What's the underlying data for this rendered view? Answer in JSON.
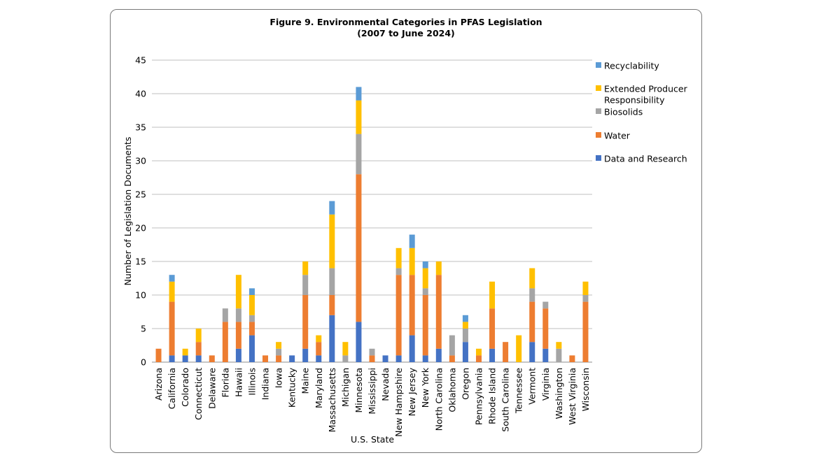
{
  "chart_data": {
    "type": "bar",
    "stacked": true,
    "title": "Figure 9. Environmental Categories in PFAS Legislation",
    "subtitle": "(2007 to June 2024)",
    "xlabel": "U.S. State",
    "ylabel": "Number of Legislation Documents",
    "ylim": [
      0,
      45
    ],
    "yticks": [
      0,
      5,
      10,
      15,
      20,
      25,
      30,
      35,
      40,
      45
    ],
    "grid": true,
    "legend_position": "right",
    "categories": [
      "Arizona",
      "California",
      "Colorado",
      "Connecticut",
      "Delaware",
      "Florida",
      "Hawaii",
      "Illinois",
      "Indiana",
      "Iowa",
      "Kentucky",
      "Maine",
      "Maryland",
      "Massachusetts",
      "Michigan",
      "Minnesota",
      "Mississippi",
      "Nevada",
      "New Hampshire",
      "New Jersey",
      "New York",
      "North Carolina",
      "Oklahoma",
      "Oregon",
      "Pennsylvania",
      "Rhode Island",
      "South Carolina",
      "Tennessee",
      "Vermont",
      "Virginia",
      "Washington",
      "West Virginia",
      "Wisconsin"
    ],
    "series": [
      {
        "name": "Data and Research",
        "color": "#4472c4",
        "values": [
          0,
          1,
          1,
          1,
          0,
          0,
          2,
          4,
          0,
          0,
          1,
          2,
          1,
          7,
          0,
          6,
          0,
          1,
          1,
          4,
          1,
          2,
          0,
          3,
          0,
          2,
          0,
          0,
          3,
          2,
          0,
          0,
          0
        ]
      },
      {
        "name": "Water",
        "color": "#ed7d31",
        "values": [
          2,
          8,
          0,
          2,
          1,
          6,
          4,
          2,
          1,
          1,
          0,
          8,
          2,
          3,
          0,
          22,
          1,
          0,
          12,
          9,
          9,
          11,
          1,
          0,
          1,
          6,
          3,
          0,
          6,
          6,
          0,
          1,
          9
        ]
      },
      {
        "name": "Biosolids",
        "color": "#a5a5a5",
        "values": [
          0,
          0,
          0,
          0,
          0,
          2,
          2,
          1,
          0,
          1,
          0,
          3,
          0,
          4,
          1,
          6,
          1,
          0,
          1,
          0,
          1,
          0,
          3,
          2,
          0,
          0,
          0,
          0,
          2,
          1,
          2,
          0,
          1
        ]
      },
      {
        "name": "Extended Producer Responsibility",
        "color": "#ffc000",
        "values": [
          0,
          3,
          1,
          2,
          0,
          0,
          5,
          3,
          0,
          1,
          0,
          2,
          1,
          8,
          2,
          5,
          0,
          0,
          3,
          4,
          3,
          2,
          0,
          1,
          1,
          4,
          0,
          4,
          3,
          0,
          1,
          0,
          2
        ]
      },
      {
        "name": "Recyclability",
        "color": "#5b9bd5",
        "values": [
          0,
          1,
          0,
          0,
          0,
          0,
          0,
          1,
          0,
          0,
          0,
          0,
          0,
          2,
          0,
          2,
          0,
          0,
          0,
          2,
          1,
          0,
          0,
          1,
          0,
          0,
          0,
          0,
          0,
          0,
          0,
          0,
          0
        ]
      }
    ],
    "legend_order": [
      "Recyclability",
      "Extended Producer Responsibility",
      "Biosolids",
      "Water",
      "Data and Research"
    ]
  }
}
